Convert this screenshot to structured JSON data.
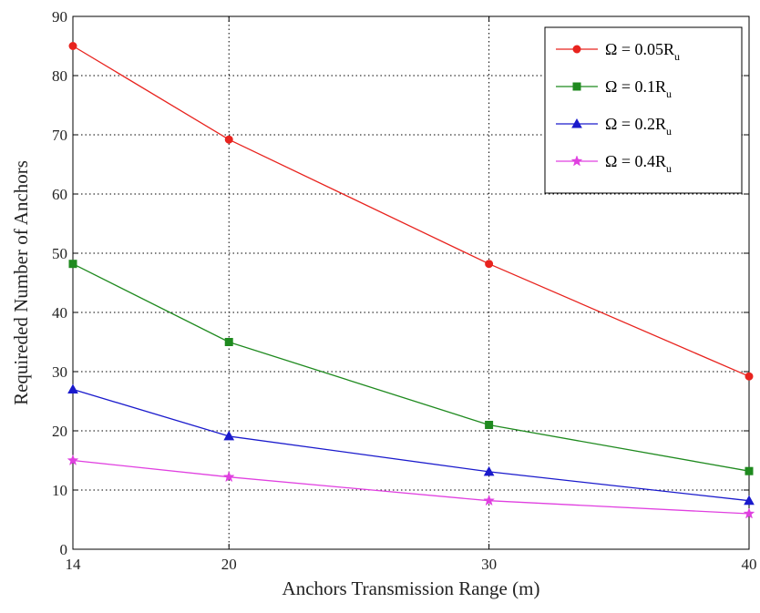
{
  "chart_data": {
    "type": "line",
    "title": "",
    "xlabel": "Anchors Transmission Range (m)",
    "ylabel": "Requireded Number of Anchors",
    "x": [
      14,
      20,
      30,
      40
    ],
    "xticks": [
      14,
      20,
      30,
      40
    ],
    "yticks": [
      0,
      10,
      20,
      30,
      40,
      50,
      60,
      70,
      80,
      90
    ],
    "xlim": [
      14,
      40
    ],
    "ylim": [
      0,
      90
    ],
    "grid": true,
    "legend_position": "top-right",
    "series": [
      {
        "name": "Ω = 0.05R",
        "name_sub": "u",
        "color": "#e8231e",
        "marker": "circle",
        "values": [
          85,
          69.2,
          48.2,
          29.2
        ]
      },
      {
        "name": "Ω = 0.1R",
        "name_sub": "u",
        "color": "#1f8a1f",
        "marker": "square",
        "values": [
          48.2,
          35,
          21,
          13.2
        ]
      },
      {
        "name": "Ω = 0.2R",
        "name_sub": "u",
        "color": "#1a1acc",
        "marker": "triangle",
        "values": [
          27,
          19.1,
          13.1,
          8.2
        ]
      },
      {
        "name": "Ω = 0.4R",
        "name_sub": "u",
        "color": "#e040e0",
        "marker": "star",
        "values": [
          15,
          12.2,
          8.2,
          6
        ]
      }
    ]
  }
}
